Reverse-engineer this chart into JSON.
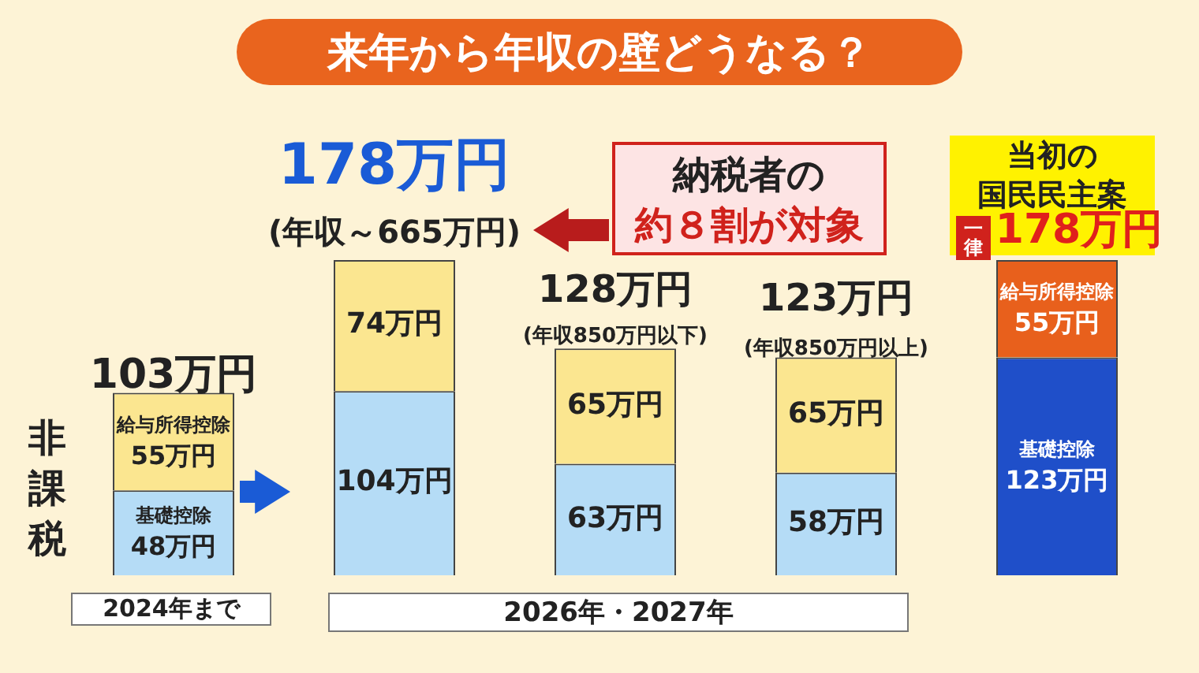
{
  "chart_data": {
    "type": "bar",
    "title": "来年から年収の壁どうなる？",
    "stacked": true,
    "categories": [
      null,
      null,
      null,
      null,
      null
    ],
    "series": [
      {
        "values": [
          48,
          104,
          63,
          58,
          123
        ],
        "colors": [
          "#b5dcf6",
          "#b5dcf6",
          "#b5dcf6",
          "#b5dcf6",
          "#1f4fc9"
        ],
        "value_labels": [
          "基礎控除\n48万円",
          "104万円",
          "63万円",
          "58万円",
          "基礎控除\n123万円"
        ]
      },
      {
        "values": [
          55,
          74,
          65,
          65,
          55
        ],
        "colors": [
          "#fbe690",
          "#fbe690",
          "#fbe690",
          "#fbe690",
          "#e8601c"
        ],
        "value_labels": [
          "給与所得控除\n55万円",
          "74万円",
          "65万円",
          "65万円",
          "給与所得控除\n55万円"
        ]
      }
    ],
    "totals": [
      "103万円",
      "178万円",
      "128万円",
      "123万円",
      "178万円"
    ],
    "annotations": [
      "(年収～665万円)",
      "(年収850万円以下)",
      "(年収850万円以上)",
      "納税者の",
      "約８割が対象",
      "非課税",
      "2024年まで",
      "2026年・2027年",
      "当初の",
      "国民民主案",
      "一律"
    ]
  }
}
